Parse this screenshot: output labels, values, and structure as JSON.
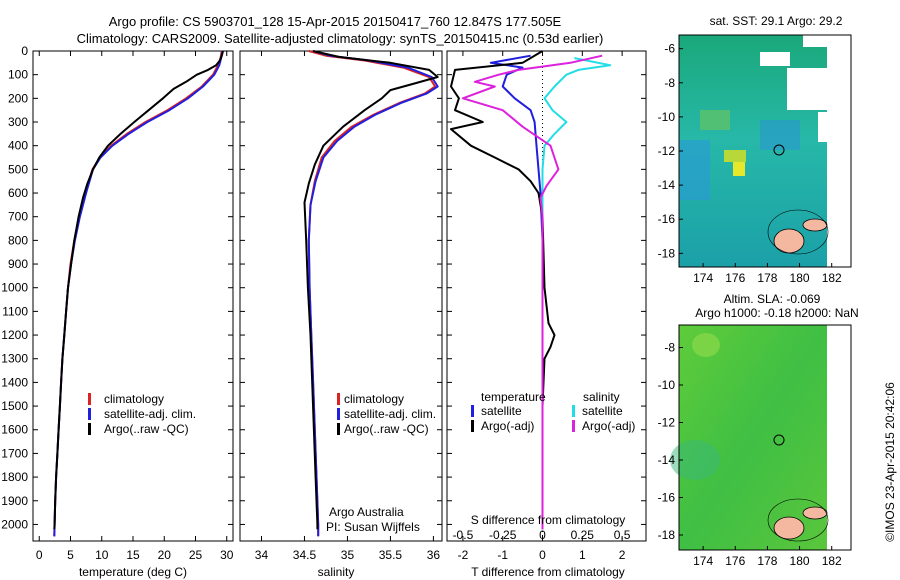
{
  "header": {
    "line1": "Argo profile: CS 5903701_128 15-Apr-2015 20150417_760 12.847S 177.505E",
    "line2": "Climatology: CARS2009. Satellite-adjusted climatology: synTS_20150415.nc (0.53d earlier)"
  },
  "colors": {
    "climatology": "#dd2222",
    "satellite": "#1f1fdd",
    "argo": "#000000",
    "sal_satellite": "#22dde6",
    "sal_argo": "#dd22dd"
  },
  "chart_data": [
    {
      "type": "line",
      "panel": "temperature",
      "xlabel": "temperature (deg C)",
      "ylabel": "",
      "xlim": [
        -1,
        31
      ],
      "ylim": [
        2070,
        0
      ],
      "x_ticks": [
        "0",
        "5",
        "10",
        "15",
        "20",
        "25",
        "30"
      ],
      "y_ticks": [
        "0",
        "100",
        "200",
        "300",
        "400",
        "500",
        "600",
        "700",
        "800",
        "900",
        "1000",
        "1100",
        "1200",
        "1300",
        "1400",
        "1500",
        "1600",
        "1700",
        "1800",
        "1900",
        "2000"
      ],
      "legend": [
        "climatology",
        "satellite-adj. clim.",
        "Argo(..raw -QC)"
      ],
      "series": [
        {
          "name": "climatology",
          "color": "#dd2222",
          "points": [
            [
              29.2,
              0
            ],
            [
              29.0,
              30
            ],
            [
              28.6,
              60
            ],
            [
              27.8,
              100
            ],
            [
              26.0,
              150
            ],
            [
              23.5,
              200
            ],
            [
              20.5,
              250
            ],
            [
              17.0,
              300
            ],
            [
              14.0,
              350
            ],
            [
              11.5,
              400
            ],
            [
              9.7,
              450
            ],
            [
              8.5,
              500
            ],
            [
              7.4,
              600
            ],
            [
              6.4,
              700
            ],
            [
              5.6,
              800
            ],
            [
              5.0,
              900
            ],
            [
              4.6,
              1000
            ],
            [
              4.3,
              1100
            ],
            [
              4.0,
              1200
            ],
            [
              3.7,
              1300
            ],
            [
              3.5,
              1400
            ],
            [
              3.3,
              1500
            ],
            [
              3.1,
              1600
            ],
            [
              2.9,
              1700
            ],
            [
              2.7,
              1800
            ],
            [
              2.55,
              1900
            ],
            [
              2.45,
              2000
            ],
            [
              2.4,
              2050
            ]
          ]
        },
        {
          "name": "satellite-adj. clim.",
          "color": "#1f1fdd",
          "points": [
            [
              29.3,
              0
            ],
            [
              29.1,
              30
            ],
            [
              28.8,
              60
            ],
            [
              28.0,
              100
            ],
            [
              26.2,
              150
            ],
            [
              23.8,
              200
            ],
            [
              20.8,
              250
            ],
            [
              17.3,
              300
            ],
            [
              14.3,
              350
            ],
            [
              11.7,
              400
            ],
            [
              9.8,
              450
            ],
            [
              8.6,
              500
            ],
            [
              7.5,
              600
            ],
            [
              6.5,
              700
            ],
            [
              5.7,
              800
            ],
            [
              5.1,
              900
            ],
            [
              4.6,
              1000
            ],
            [
              4.3,
              1100
            ],
            [
              4.0,
              1200
            ],
            [
              3.7,
              1300
            ],
            [
              3.5,
              1400
            ],
            [
              3.3,
              1500
            ],
            [
              3.1,
              1600
            ],
            [
              2.9,
              1700
            ],
            [
              2.7,
              1800
            ],
            [
              2.55,
              1900
            ],
            [
              2.45,
              2000
            ],
            [
              2.4,
              2050
            ]
          ]
        },
        {
          "name": "Argo(..raw -QC)",
          "color": "#000000",
          "points": [
            [
              29.4,
              0
            ],
            [
              29.2,
              20
            ],
            [
              28.9,
              40
            ],
            [
              28.3,
              60
            ],
            [
              27.0,
              80
            ],
            [
              25.2,
              100
            ],
            [
              23.5,
              130
            ],
            [
              21.5,
              160
            ],
            [
              19.8,
              200
            ],
            [
              17.5,
              250
            ],
            [
              15.2,
              300
            ],
            [
              13.0,
              350
            ],
            [
              11.0,
              400
            ],
            [
              9.6,
              450
            ],
            [
              8.6,
              500
            ],
            [
              7.7,
              560
            ],
            [
              7.0,
              620
            ],
            [
              6.3,
              700
            ],
            [
              5.6,
              800
            ],
            [
              5.1,
              900
            ],
            [
              4.6,
              1000
            ],
            [
              4.3,
              1100
            ],
            [
              4.0,
              1200
            ],
            [
              3.7,
              1300
            ],
            [
              3.5,
              1400
            ],
            [
              3.3,
              1500
            ],
            [
              3.1,
              1600
            ],
            [
              2.9,
              1700
            ],
            [
              2.7,
              1800
            ],
            [
              2.55,
              1900
            ],
            [
              2.45,
              2000
            ],
            [
              2.4,
              2020
            ]
          ]
        }
      ]
    },
    {
      "type": "line",
      "panel": "salinity",
      "xlabel": "salinity",
      "xlim": [
        33.75,
        36.1
      ],
      "ylim": [
        2070,
        0
      ],
      "x_ticks": [
        "34",
        "34.5",
        "35",
        "35.5",
        "36"
      ],
      "legend": [
        "climatology",
        "satellite-adj. clim.",
        "Argo(..raw -QC)"
      ],
      "annotation": [
        "Argo Australia",
        "PI: Susan Wijffels"
      ],
      "series": [
        {
          "name": "climatology",
          "color": "#dd2222",
          "points": [
            [
              34.55,
              0
            ],
            [
              34.75,
              20
            ],
            [
              35.2,
              40
            ],
            [
              35.65,
              70
            ],
            [
              35.95,
              110
            ],
            [
              36.02,
              150
            ],
            [
              35.9,
              180
            ],
            [
              35.6,
              220
            ],
            [
              35.3,
              270
            ],
            [
              35.05,
              320
            ],
            [
              34.85,
              380
            ],
            [
              34.7,
              450
            ],
            [
              34.62,
              550
            ],
            [
              34.57,
              650
            ],
            [
              34.55,
              800
            ],
            [
              34.56,
              1000
            ],
            [
              34.58,
              1200
            ],
            [
              34.6,
              1400
            ],
            [
              34.62,
              1600
            ],
            [
              34.64,
              1800
            ],
            [
              34.66,
              2000
            ],
            [
              34.66,
              2050
            ]
          ]
        },
        {
          "name": "satellite-adj. clim.",
          "color": "#1f1fdd",
          "points": [
            [
              34.6,
              0
            ],
            [
              34.8,
              20
            ],
            [
              35.25,
              40
            ],
            [
              35.7,
              70
            ],
            [
              35.98,
              110
            ],
            [
              36.05,
              150
            ],
            [
              35.92,
              180
            ],
            [
              35.62,
              220
            ],
            [
              35.32,
              270
            ],
            [
              35.08,
              320
            ],
            [
              34.88,
              380
            ],
            [
              34.72,
              450
            ],
            [
              34.63,
              550
            ],
            [
              34.57,
              650
            ],
            [
              34.55,
              800
            ],
            [
              34.56,
              1000
            ],
            [
              34.58,
              1200
            ],
            [
              34.6,
              1400
            ],
            [
              34.62,
              1600
            ],
            [
              34.64,
              1800
            ],
            [
              34.66,
              2000
            ],
            [
              34.66,
              2050
            ]
          ]
        },
        {
          "name": "Argo(..raw -QC)",
          "color": "#000000",
          "points": [
            [
              34.6,
              0
            ],
            [
              34.9,
              25
            ],
            [
              35.5,
              50
            ],
            [
              35.95,
              80
            ],
            [
              36.05,
              110
            ],
            [
              35.8,
              135
            ],
            [
              35.5,
              165
            ],
            [
              35.4,
              200
            ],
            [
              35.2,
              250
            ],
            [
              34.95,
              320
            ],
            [
              34.72,
              400
            ],
            [
              34.62,
              480
            ],
            [
              34.55,
              560
            ],
            [
              34.5,
              640
            ],
            [
              34.52,
              800
            ],
            [
              34.54,
              1000
            ],
            [
              34.57,
              1200
            ],
            [
              34.59,
              1400
            ],
            [
              34.61,
              1600
            ],
            [
              34.63,
              1800
            ],
            [
              34.65,
              2000
            ],
            [
              34.65,
              2020
            ]
          ]
        }
      ]
    },
    {
      "type": "line",
      "panel": "difference",
      "xlabel": "T difference from climatology",
      "top_label": "S difference from climatology",
      "xlim": [
        -2.4,
        2.6
      ],
      "ylim": [
        2070,
        0
      ],
      "x_ticks": [
        "-2",
        "-1",
        "0",
        "1",
        "2"
      ],
      "s_ticks": [
        "-0.5",
        "-0.25",
        "0",
        "0.25",
        "0.5"
      ],
      "legend_headers": [
        "temperature",
        "salinity"
      ],
      "legend": [
        "satellite",
        "Argo(-adj)",
        "satellite",
        "Argo(-adj)"
      ],
      "series": [
        {
          "name": "satellite",
          "color": "#1f1fdd",
          "points": [
            [
              -0.3,
              20
            ],
            [
              -1.3,
              50
            ],
            [
              -0.5,
              70
            ],
            [
              -0.9,
              100
            ],
            [
              -1.0,
              150
            ],
            [
              -0.7,
              200
            ],
            [
              -0.3,
              250
            ],
            [
              -0.2,
              300
            ],
            [
              -0.15,
              400
            ],
            [
              -0.1,
              500
            ],
            [
              -0.05,
              600
            ],
            [
              0,
              800
            ],
            [
              0,
              2020
            ]
          ]
        },
        {
          "name": "Argo(-adj)",
          "color": "#000000",
          "points": [
            [
              0,
              0
            ],
            [
              -0.5,
              50
            ],
            [
              -2.2,
              80
            ],
            [
              -2.3,
              150
            ],
            [
              -2.1,
              200
            ],
            [
              -2.2,
              250
            ],
            [
              -1.5,
              300
            ],
            [
              -2.3,
              330
            ],
            [
              -1.8,
              400
            ],
            [
              -1.2,
              450
            ],
            [
              -0.6,
              500
            ],
            [
              -0.3,
              550
            ],
            [
              -0.1,
              600
            ],
            [
              0,
              700
            ],
            [
              0.05,
              1000
            ],
            [
              0.15,
              1150
            ],
            [
              0.3,
              1200
            ],
            [
              0.2,
              1250
            ],
            [
              0.05,
              1300
            ],
            [
              0,
              1500
            ],
            [
              0,
              2020
            ]
          ]
        },
        {
          "name": "satellite",
          "color": "#22dde6",
          "points": [
            [
              0.8,
              30
            ],
            [
              1.7,
              60
            ],
            [
              0.9,
              80
            ],
            [
              0.6,
              100
            ],
            [
              0.3,
              150
            ],
            [
              0.05,
              200
            ],
            [
              0.25,
              250
            ],
            [
              0.6,
              300
            ],
            [
              0.3,
              350
            ],
            [
              0.05,
              400
            ],
            [
              0,
              500
            ],
            [
              0,
              2020
            ]
          ]
        },
        {
          "name": "Argo(-adj)",
          "color": "#dd22dd",
          "points": [
            [
              1.5,
              20
            ],
            [
              0.7,
              50
            ],
            [
              -0.6,
              80
            ],
            [
              -1.1,
              100
            ],
            [
              -1.7,
              130
            ],
            [
              -1.2,
              150
            ],
            [
              -2.0,
              200
            ],
            [
              -1.0,
              250
            ],
            [
              -0.5,
              320
            ],
            [
              0.2,
              400
            ],
            [
              0.4,
              500
            ],
            [
              0.1,
              570
            ],
            [
              -0.05,
              620
            ],
            [
              0,
              700
            ],
            [
              0,
              2020
            ]
          ]
        }
      ]
    }
  ],
  "maps": {
    "sst": {
      "title": "sat. SST: 29.1  Argo: 29.2",
      "x_ticks": [
        "174",
        "176",
        "178",
        "180",
        "182"
      ],
      "y_ticks": [
        "-6",
        "-8",
        "-10",
        "-12",
        "-14",
        "-16",
        "-18"
      ]
    },
    "sla": {
      "title1": "Altim. SLA: -0.069",
      "title2": "Argo h1000: -0.18  h2000: NaN",
      "x_ticks": [
        "174",
        "176",
        "178",
        "180",
        "182"
      ],
      "y_ticks": [
        "-8",
        "-10",
        "-12",
        "-14",
        "-16",
        "-18"
      ]
    }
  },
  "credit": "©IMOS 23-Apr-2015 20:42:06"
}
